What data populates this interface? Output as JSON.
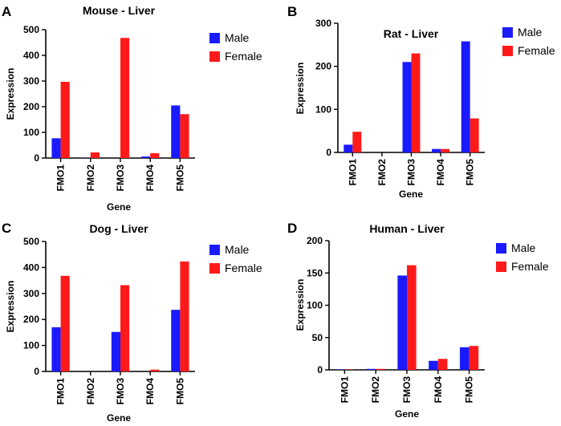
{
  "chart_data": [
    {
      "type": "bar",
      "panel_label": "A",
      "title": "Mouse - Liver",
      "xlabel": "Gene",
      "ylabel": "Expression",
      "categories": [
        "FMO1",
        "FMO2",
        "FMO3",
        "FMO4",
        "FMO5"
      ],
      "ylim": [
        0,
        500
      ],
      "yticks": [
        "0",
        "100",
        "200",
        "300",
        "400",
        "500"
      ],
      "legend_position": "right",
      "series": [
        {
          "name": "Male",
          "color": "#1a1aff",
          "values": [
            77,
            1,
            0,
            6,
            205
          ]
        },
        {
          "name": "Female",
          "color": "#ff1a1a",
          "values": [
            297,
            22,
            468,
            19,
            171
          ]
        }
      ]
    },
    {
      "type": "bar",
      "panel_label": "B",
      "title": "Rat - Liver",
      "xlabel": "Gene",
      "ylabel": "Expression",
      "categories": [
        "FMO1",
        "FMO2",
        "FMO3",
        "FMO4",
        "FMO5"
      ],
      "ylim": [
        0,
        300
      ],
      "yticks": [
        "0",
        "100",
        "200",
        "300"
      ],
      "legend_position": "right",
      "series": [
        {
          "name": "Male",
          "color": "#1a1aff",
          "values": [
            18,
            0,
            210,
            8,
            258
          ]
        },
        {
          "name": "Female",
          "color": "#ff1a1a",
          "values": [
            48,
            0,
            230,
            8,
            79
          ]
        }
      ]
    },
    {
      "type": "bar",
      "panel_label": "C",
      "title": "Dog - Liver",
      "xlabel": "Gene",
      "ylabel": "Expression",
      "categories": [
        "FMO1",
        "FMO2",
        "FMO3",
        "FMO4",
        "FMO5"
      ],
      "ylim": [
        0,
        500
      ],
      "yticks": [
        "0",
        "100",
        "200",
        "300",
        "400",
        "500"
      ],
      "legend_position": "right",
      "series": [
        {
          "name": "Male",
          "color": "#1a1aff",
          "values": [
            170,
            0,
            152,
            0,
            237
          ]
        },
        {
          "name": "Female",
          "color": "#ff1a1a",
          "values": [
            368,
            0,
            332,
            7,
            423
          ]
        }
      ]
    },
    {
      "type": "bar",
      "panel_label": "D",
      "title": "Human - Liver",
      "xlabel": "Gene",
      "ylabel": "Expression",
      "categories": [
        "FMO1",
        "FMO2",
        "FMO3",
        "FMO4",
        "FMO5"
      ],
      "ylim": [
        0,
        200
      ],
      "yticks": [
        "0",
        "50",
        "100",
        "150",
        "200"
      ],
      "legend_position": "right",
      "series": [
        {
          "name": "Male",
          "color": "#1a1aff",
          "values": [
            0.5,
            1.5,
            146,
            14,
            35
          ]
        },
        {
          "name": "Female",
          "color": "#ff1a1a",
          "values": [
            0.5,
            1.5,
            162,
            17,
            37
          ]
        }
      ]
    }
  ]
}
